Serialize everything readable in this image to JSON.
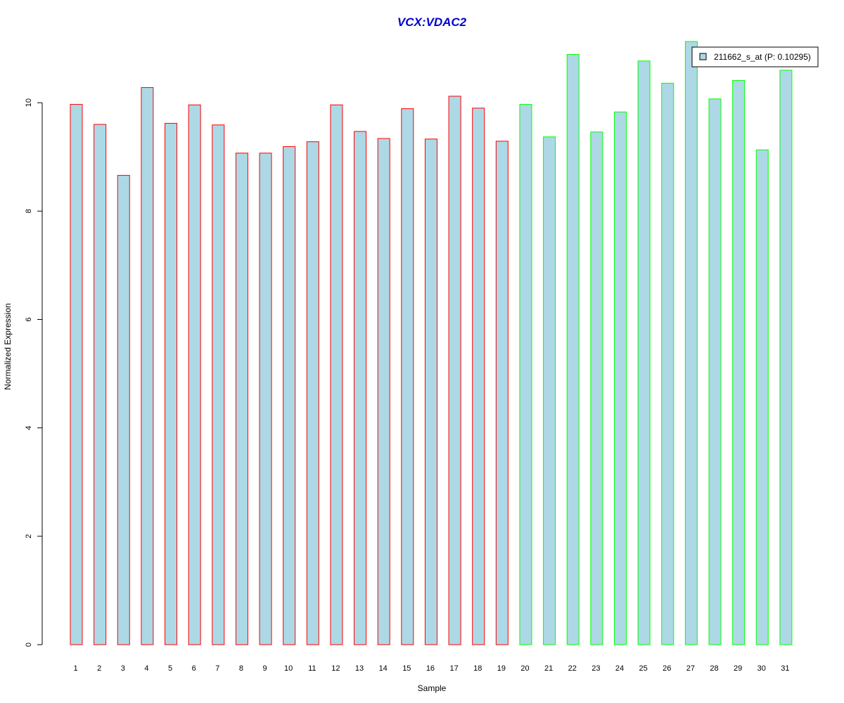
{
  "chart_data": {
    "type": "bar",
    "title": "VCX:VDAC2",
    "xlabel": "Sample",
    "ylabel": "Normalized Expression",
    "categories": [
      "1",
      "2",
      "3",
      "4",
      "5",
      "6",
      "7",
      "8",
      "9",
      "10",
      "11",
      "12",
      "13",
      "14",
      "15",
      "16",
      "17",
      "18",
      "19",
      "20",
      "21",
      "22",
      "23",
      "24",
      "25",
      "26",
      "27",
      "28",
      "29",
      "30",
      "31"
    ],
    "series": [
      {
        "name": "211662_s_at (P: 0.10295)",
        "values": [
          9.97,
          9.6,
          8.66,
          10.28,
          9.62,
          9.96,
          9.59,
          9.07,
          9.07,
          9.19,
          9.28,
          9.96,
          9.47,
          9.34,
          9.89,
          9.33,
          10.12,
          9.9,
          9.29,
          9.97,
          9.37,
          10.89,
          9.46,
          9.83,
          10.77,
          10.36,
          11.13,
          10.07,
          10.41,
          9.13,
          10.6
        ]
      }
    ],
    "groups": [
      {
        "range": [
          1,
          19
        ],
        "border_color": "#ff0000"
      },
      {
        "range": [
          20,
          31
        ],
        "border_color": "#00ff00"
      }
    ],
    "bar_fill": "#add8e6",
    "title_color": "#0000cd",
    "y_ticks": [
      0,
      2,
      4,
      6,
      8,
      10
    ],
    "ylim": [
      0,
      11.13
    ],
    "grid": false,
    "legend_position": "top-right"
  }
}
